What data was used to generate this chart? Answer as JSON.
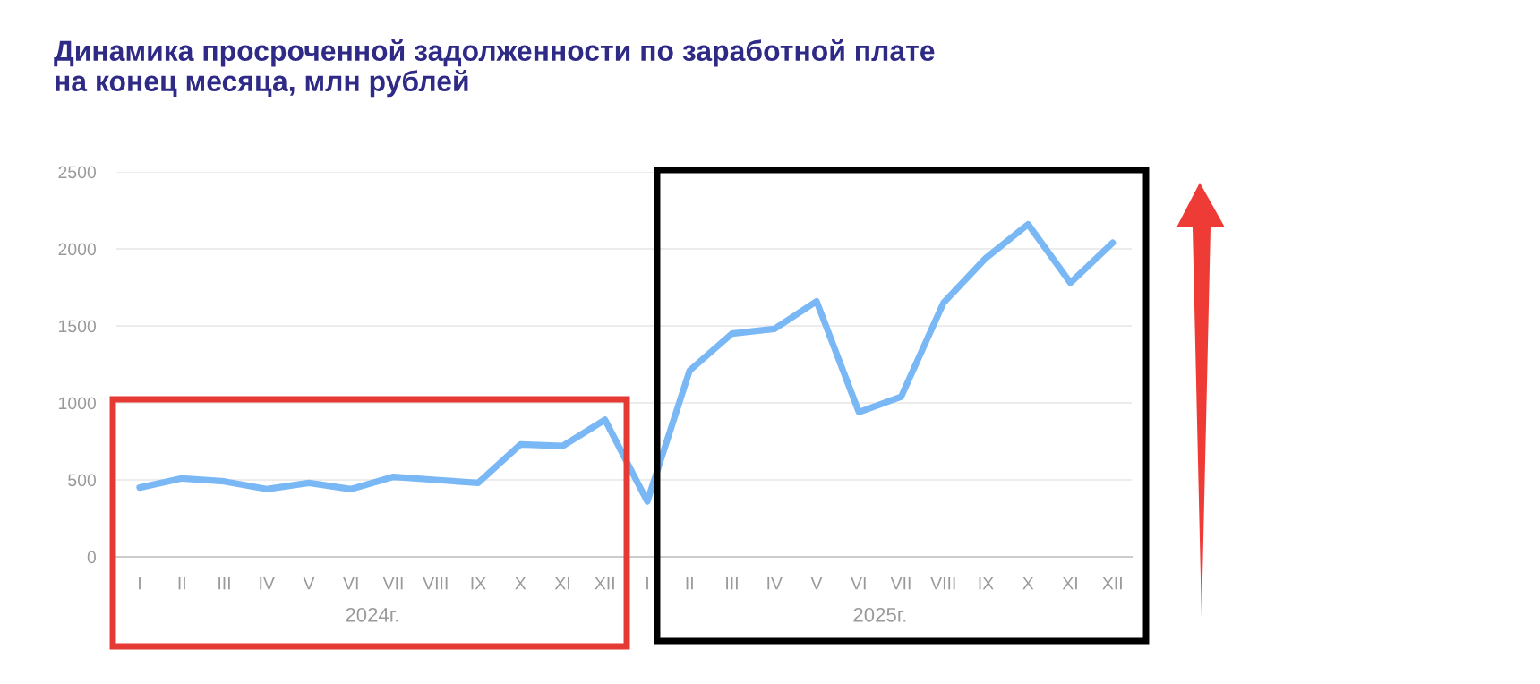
{
  "chart_data": {
    "type": "line",
    "title": "Динамика просроченной задолженности по заработной плате\nна конец месяца, млн рублей",
    "categories": [
      "I",
      "II",
      "III",
      "IV",
      "V",
      "VI",
      "VII",
      "VIII",
      "IX",
      "X",
      "XI",
      "XII",
      "I",
      "II",
      "III",
      "IV",
      "V",
      "VI",
      "VII",
      "VIII",
      "IX",
      "X",
      "XI",
      "XII"
    ],
    "series": [
      {
        "color": "#7ab8f5",
        "values": [
          450,
          510,
          490,
          440,
          480,
          440,
          520,
          500,
          480,
          730,
          720,
          890,
          360,
          1210,
          1450,
          1480,
          1660,
          940,
          1040,
          1650,
          1940,
          2160,
          1780,
          2040
        ]
      }
    ],
    "annotations": [
      "2024г.",
      "2025г."
    ],
    "ylim": [
      0,
      2500
    ],
    "yticks": [
      0,
      500,
      1000,
      1500,
      2000,
      2500
    ],
    "grid": "y",
    "marker": "none",
    "line_style": "solid"
  }
}
